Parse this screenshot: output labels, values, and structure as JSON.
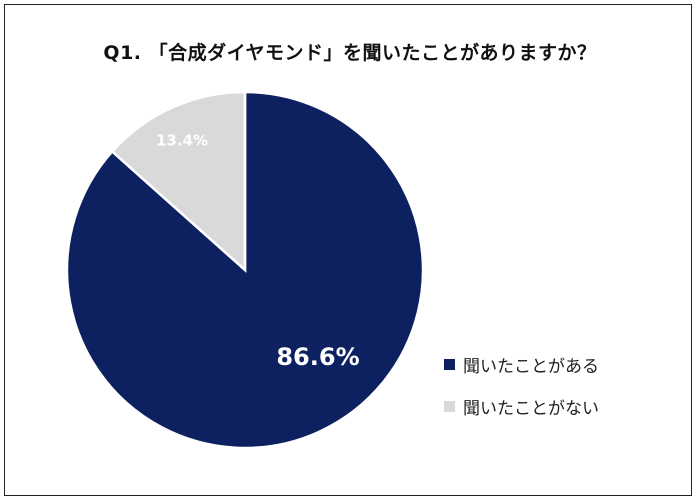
{
  "chart_data": {
    "type": "pie",
    "title": "Q1. 「合成ダイヤモンド」を聞いたことがありますか？",
    "slices": [
      {
        "label": "聞いたことがある",
        "value": 86.6,
        "value_label": "86.6%",
        "color": "#0d2160",
        "label_color": "#ffffff"
      },
      {
        "label": "聞いたことがない",
        "value": 13.4,
        "value_label": "13.4%",
        "color": "#d9d9d9",
        "label_color": "#ffffff"
      }
    ],
    "legend": {
      "placement": "right"
    },
    "start": "12 o'clock",
    "direction": "clockwise"
  }
}
